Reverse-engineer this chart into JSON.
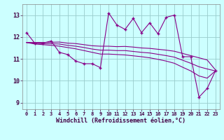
{
  "x": [
    0,
    1,
    2,
    3,
    4,
    5,
    6,
    7,
    8,
    9,
    10,
    11,
    12,
    13,
    14,
    15,
    16,
    17,
    18,
    19,
    20,
    21,
    22,
    23
  ],
  "y_main": [
    12.2,
    11.72,
    11.72,
    11.82,
    11.3,
    11.2,
    10.9,
    10.78,
    10.78,
    10.6,
    13.1,
    12.55,
    12.35,
    12.85,
    12.2,
    12.65,
    12.15,
    12.9,
    13.0,
    11.1,
    11.1,
    9.25,
    9.65,
    10.45
  ],
  "y_upper": [
    11.75,
    11.75,
    11.75,
    11.76,
    11.77,
    11.72,
    11.7,
    11.65,
    11.6,
    11.58,
    11.58,
    11.56,
    11.57,
    11.54,
    11.5,
    11.48,
    11.44,
    11.4,
    11.35,
    11.25,
    11.15,
    11.05,
    10.95,
    10.5
  ],
  "y_lower": [
    11.75,
    11.68,
    11.65,
    11.62,
    11.58,
    11.52,
    11.46,
    11.38,
    11.3,
    11.22,
    11.22,
    11.2,
    11.18,
    11.14,
    11.1,
    11.05,
    10.98,
    10.9,
    10.8,
    10.62,
    10.45,
    10.22,
    10.12,
    10.45
  ],
  "y_mid": [
    11.75,
    11.72,
    11.7,
    11.69,
    11.68,
    11.62,
    11.58,
    11.52,
    11.45,
    11.4,
    11.4,
    11.38,
    11.38,
    11.34,
    11.3,
    11.27,
    11.21,
    11.15,
    11.08,
    10.94,
    10.8,
    10.64,
    10.54,
    10.45
  ],
  "line_color": "#880088",
  "marker": "+",
  "bg_color": "#ccffff",
  "grid_color": "#99cccc",
  "xlabel": "Windchill (Refroidissement éolien,°C)",
  "yticks": [
    9,
    10,
    11,
    12,
    13
  ],
  "xlim": [
    -0.5,
    23.5
  ],
  "ylim": [
    8.7,
    13.5
  ],
  "xtick_labels": [
    "0",
    "1",
    "2",
    "3",
    "4",
    "5",
    "6",
    "7",
    "8",
    "9",
    "10",
    "11",
    "12",
    "13",
    "14",
    "15",
    "16",
    "17",
    "18",
    "19",
    "20",
    "21",
    "22",
    "23"
  ]
}
